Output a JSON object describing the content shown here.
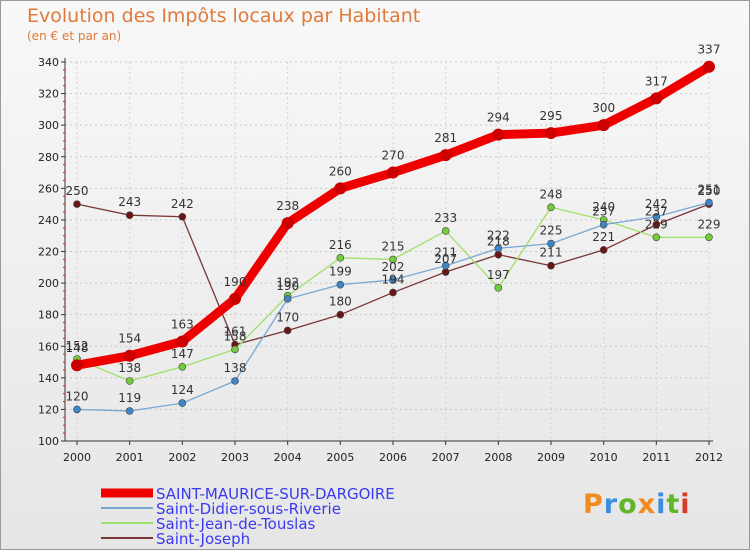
{
  "title": "Evolution des Impôts locaux par Habitant",
  "subtitle": "(en € et par an)",
  "brand": "Proxiti",
  "brand_colors": [
    "#f28a1e",
    "#3c8ee0",
    "#62b62a",
    "#f28a1e",
    "#3c8ee0",
    "#62b62a",
    "#d83a2a"
  ],
  "chart_data": {
    "type": "line",
    "title": "Evolution des Impôts locaux par Habitant",
    "subtitle": "(en € et par an)",
    "xlabel": "",
    "ylabel": "",
    "x": [
      "2000",
      "2001",
      "2002",
      "2003",
      "2004",
      "2005",
      "2006",
      "2007",
      "2008",
      "2009",
      "2010",
      "2011",
      "2012"
    ],
    "ylim": [
      100,
      340
    ],
    "yticks": [
      100,
      120,
      140,
      160,
      180,
      200,
      220,
      240,
      260,
      280,
      300,
      320,
      340
    ],
    "grid": true,
    "legend_position": "bottom-left",
    "series": [
      {
        "name": "SAINT-MAURICE-SUR-DARGOIRE",
        "color": "#ee0000",
        "marker": "#cc0000",
        "width": 9,
        "values": [
          148,
          154,
          163,
          190,
          238,
          260,
          270,
          281,
          294,
          295,
          300,
          317,
          337
        ],
        "labels": [
          "148",
          "154",
          "163",
          "190",
          "238",
          "260",
          "270",
          "281",
          "294",
          "295",
          "300",
          "317",
          "337"
        ]
      },
      {
        "name": "Saint-Didier-sous-Riverie",
        "color": "#79a8d4",
        "marker": "#3e86c8",
        "width": 1.3,
        "values": [
          120,
          119,
          124,
          138,
          190,
          199,
          202,
          211,
          222,
          225,
          237,
          242,
          251
        ],
        "labels": [
          "120",
          "119",
          "124",
          "138",
          "190",
          "199",
          "202",
          "211",
          "222",
          "225",
          "237",
          "242",
          "251"
        ]
      },
      {
        "name": "Saint-Jean-de-Touslas",
        "color": "#9fe06a",
        "marker": "#73cc3a",
        "width": 1.3,
        "values": [
          152,
          138,
          147,
          158,
          192,
          216,
          215,
          233,
          197,
          248,
          240,
          229,
          229
        ],
        "labels": [
          "152",
          "138",
          "147",
          "158",
          "192",
          "216",
          "215",
          "233",
          "197",
          "248",
          "240",
          "229",
          "229"
        ]
      },
      {
        "name": "Saint-Joseph",
        "color": "#7a3535",
        "marker": "#6b1616",
        "width": 1.3,
        "values": [
          250,
          243,
          242,
          161,
          170,
          180,
          194,
          207,
          218,
          211,
          221,
          237,
          250
        ],
        "labels": [
          "250",
          "243",
          "242",
          "161",
          "170",
          "180",
          "194",
          "207",
          "218",
          "211",
          "221",
          "237",
          "250"
        ]
      }
    ]
  }
}
